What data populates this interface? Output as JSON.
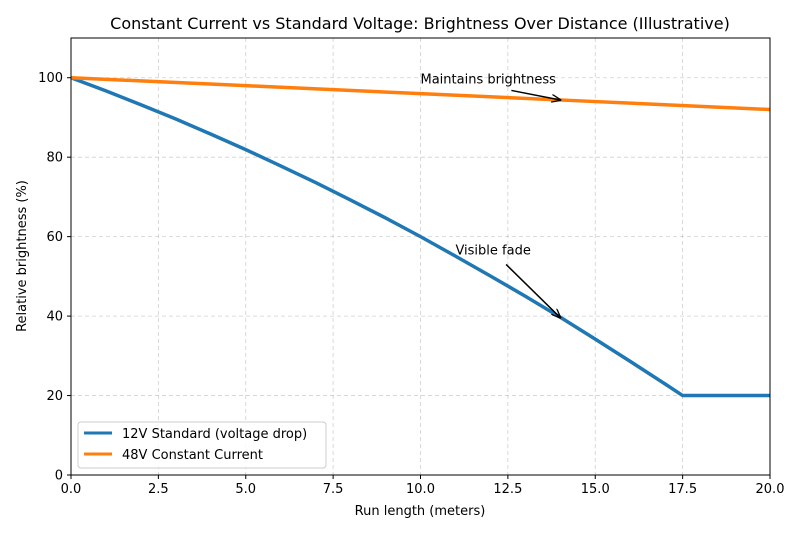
{
  "chart_data": {
    "type": "line",
    "title": "Constant Current vs Standard Voltage: Brightness Over Distance (Illustrative)",
    "xlabel": "Run length (meters)",
    "ylabel": "Relative brightness (%)",
    "xlim": [
      0,
      20
    ],
    "ylim": [
      0,
      110
    ],
    "xticks": [
      0,
      2.5,
      5,
      7.5,
      10,
      12.5,
      15,
      17.5,
      20
    ],
    "xtick_labels": [
      "0.0",
      "2.5",
      "5.0",
      "7.5",
      "10.0",
      "12.5",
      "15.0",
      "17.5",
      "20.0"
    ],
    "yticks": [
      0,
      20,
      40,
      60,
      80,
      100
    ],
    "ytick_labels": [
      "0",
      "20",
      "40",
      "60",
      "80",
      "100"
    ],
    "grid": true,
    "grid_style": "dashed",
    "legend_position": "lower-left",
    "series": [
      {
        "name": "12V Standard (voltage drop)",
        "color": "#1f77b4",
        "x": [
          0,
          1,
          2,
          3,
          4,
          5,
          6,
          7,
          8,
          9,
          10,
          11,
          12,
          13,
          14,
          15,
          16,
          17,
          17.5,
          18,
          19,
          20
        ],
        "y": [
          100,
          96.7,
          93.2,
          89.6,
          85.8,
          81.9,
          77.8,
          73.6,
          69.2,
          64.7,
          60.0,
          55.1,
          50.1,
          45.0,
          39.7,
          34.2,
          28.6,
          22.9,
          20,
          20,
          20,
          20
        ]
      },
      {
        "name": "48V Constant Current",
        "color": "#ff7f0e",
        "x": [
          0,
          5,
          10,
          15,
          20
        ],
        "y": [
          100,
          98,
          96,
          94,
          92
        ]
      }
    ],
    "annotations": [
      {
        "text": "Maintains brightness",
        "text_at": [
          10,
          98.5
        ],
        "arrow_to": [
          14,
          94.4
        ]
      },
      {
        "text": "Visible fade",
        "text_at": [
          11,
          55.5
        ],
        "arrow_to": [
          14,
          39.6
        ]
      }
    ]
  }
}
